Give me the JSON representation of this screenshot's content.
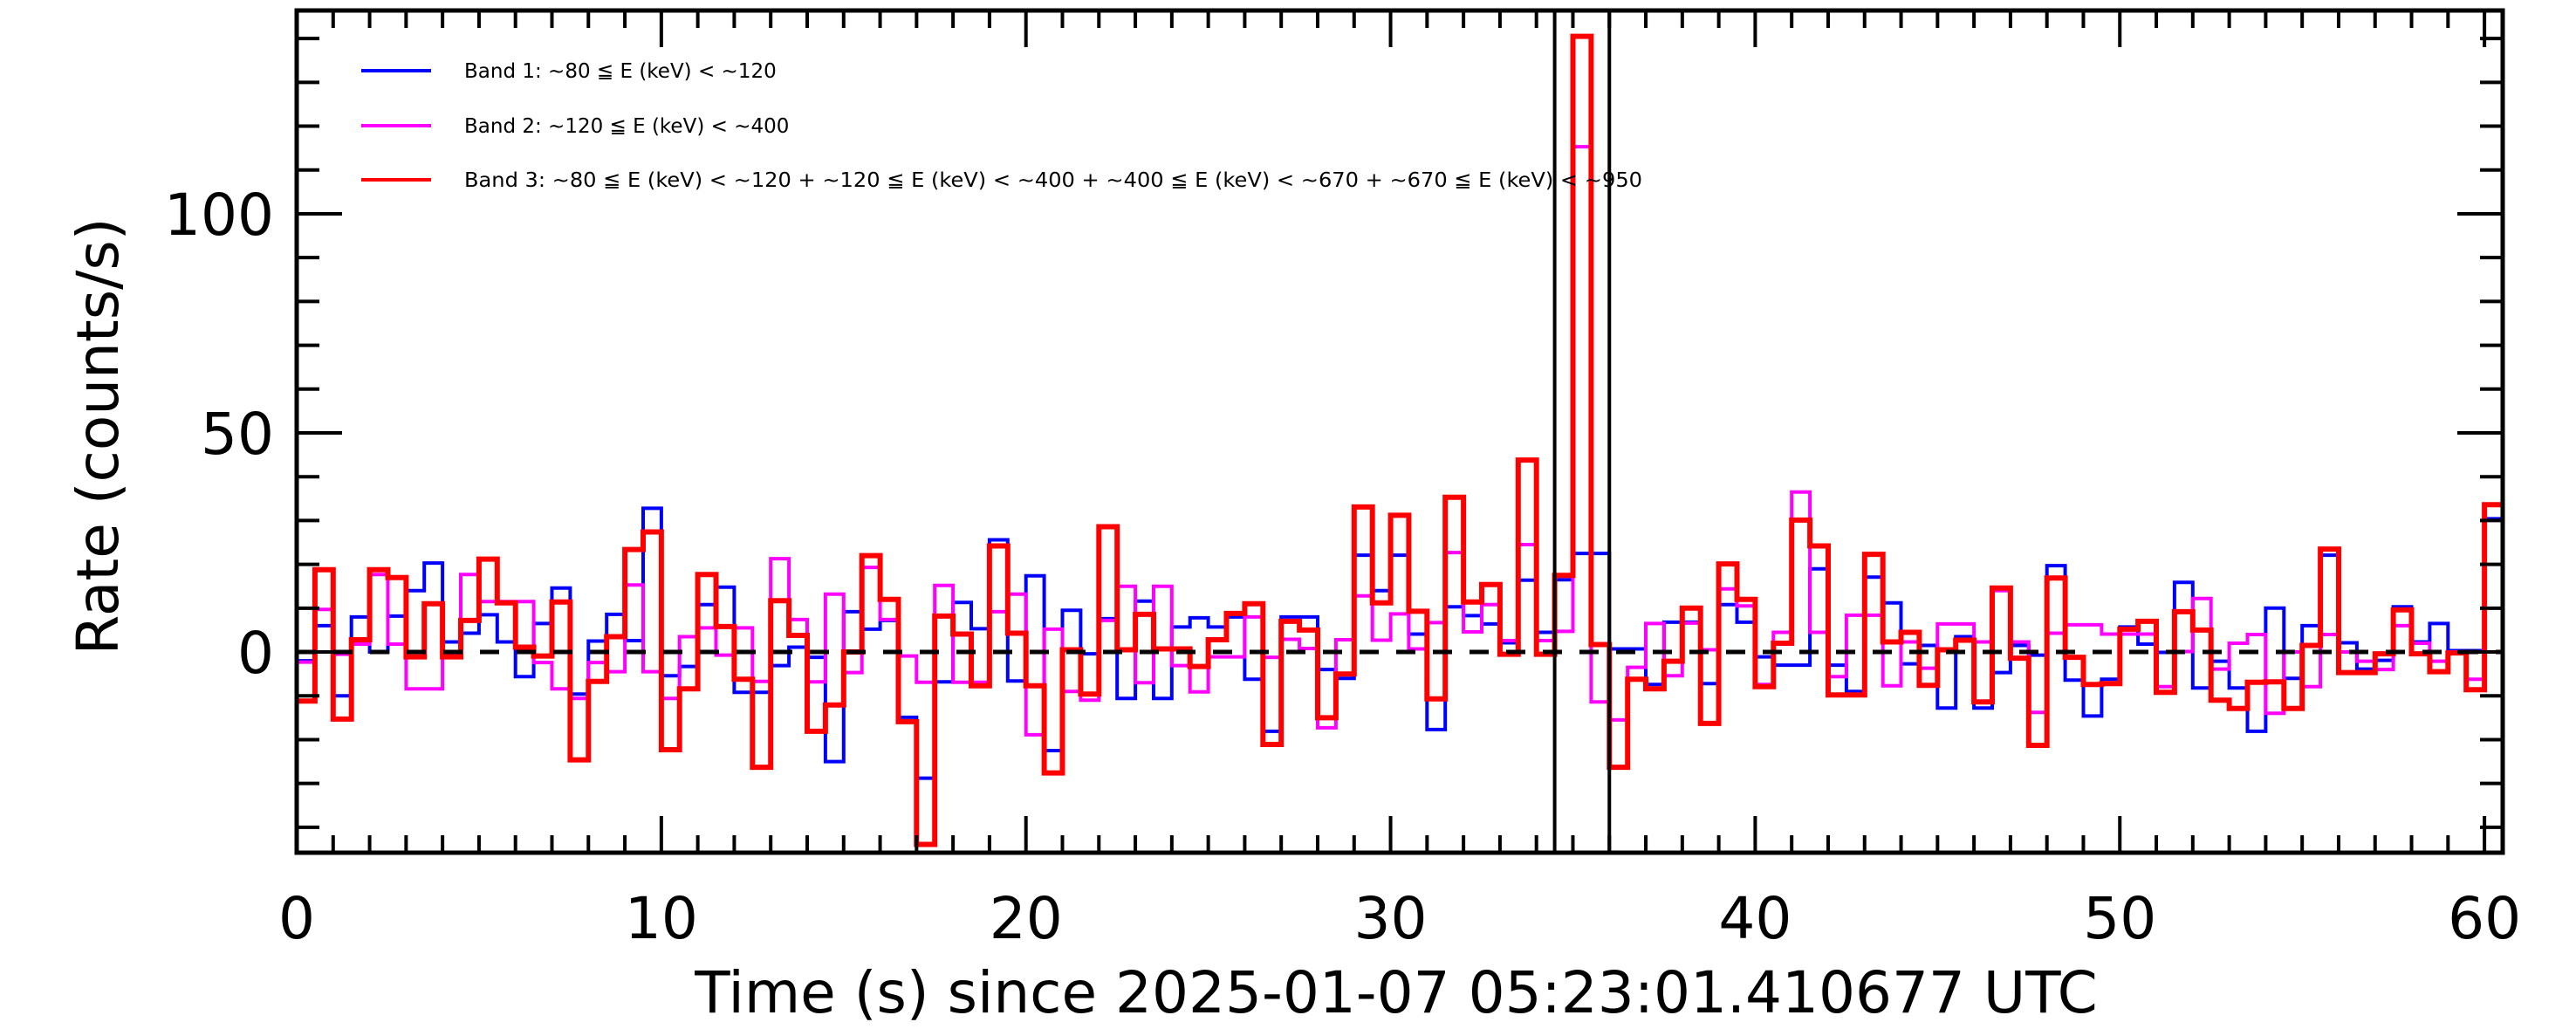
{
  "chart_data": {
    "type": "line",
    "step": true,
    "xlabel": "Time (s) since 2025-01-07 05:23:01.410677 UTC",
    "ylabel": "Rate (counts/s)",
    "xlim": [
      0,
      60.5
    ],
    "ylim": [
      -45.8,
      146.4
    ],
    "xticks": [
      0,
      10,
      20,
      30,
      40,
      50,
      60
    ],
    "xtick_labels": [
      "0",
      "10",
      "20",
      "30",
      "40",
      "50",
      "60"
    ],
    "yticks": [
      0,
      50,
      100
    ],
    "ytick_labels": [
      "0",
      "50",
      "100"
    ],
    "x_minor_step": 1,
    "y_minor_step": 10,
    "bin_width": 0.5,
    "bin_start": 0,
    "reference_line": {
      "y": 0,
      "style": "dashed",
      "color": "#000000"
    },
    "vertical_markers": [
      34.5,
      36.0
    ],
    "legend_placement": "top-left",
    "series": [
      {
        "name": "Band 1: ~80 ≦ E (keV) < ~120",
        "color": "#0000ff",
        "values": [
          -2,
          6,
          -10,
          8,
          0,
          8.2,
          14,
          20.3,
          2.3,
          4.3,
          8.5,
          2.3,
          -5.6,
          6.5,
          14.6,
          -9.6,
          2.5,
          8.6,
          2.6,
          32.8,
          -5.4,
          -3.3,
          10.8,
          14.8,
          -9.2,
          -9.2,
          -3.1,
          1.1,
          -1.2,
          -25,
          9.2,
          5.2,
          7.2,
          -14.9,
          -28.8,
          -6.8,
          11.3,
          5.3,
          25.6,
          -6.6,
          17.4,
          -22.5,
          9.5,
          -0.4,
          7.6,
          -10.6,
          11.6,
          -10.6,
          5.7,
          7.8,
          5.7,
          8,
          -6.2,
          -18.1,
          8,
          8,
          -4,
          -6,
          22.1,
          14,
          22.1,
          4.1,
          -17.7,
          10.3,
          8.3,
          6.4,
          2.1,
          16.4,
          4.5,
          16.5,
          22.5,
          22.5,
          0.7,
          0.7,
          -7.4,
          6.8,
          6.8,
          -7.2,
          10.8,
          6.8,
          -1.1,
          -3,
          -3,
          19,
          -3,
          -9,
          17.1,
          11.2,
          -2.7,
          1.5,
          -12.8,
          3.5,
          -12.8,
          -4.7,
          1.5,
          -0.7,
          19.7,
          -6.4,
          -14.6,
          -6.2,
          5.7,
          1.8,
          -0.1,
          15.9,
          -8.2,
          -2.1,
          -8.2,
          -18.1,
          10,
          -6,
          6,
          22.1,
          2.1,
          -3.9,
          -1.9,
          10.3,
          2.3,
          6.5,
          0.3,
          0.3,
          30.4
        ]
      },
      {
        "name": "Band 2: ~120 ≦ E (keV) < ~400",
        "color": "#ff00ff",
        "values": [
          -2.3,
          9.7,
          -0.5,
          1.8,
          17.7,
          1.8,
          -8.4,
          -8.4,
          -0.2,
          17.7,
          11.5,
          11.5,
          11.5,
          -2.4,
          -8.4,
          -10.6,
          -2.4,
          -4.5,
          15.3,
          -4.5,
          -10.6,
          3.5,
          5.5,
          -0.7,
          5.5,
          -6.7,
          21.3,
          7.4,
          -6.8,
          13.2,
          -4.7,
          19.3,
          7.4,
          -0.9,
          -6.9,
          15.2,
          -6.9,
          -6.9,
          9.2,
          13.2,
          -18.9,
          5.2,
          -9,
          -11,
          7.2,
          15,
          -7,
          15,
          -3.1,
          -9.1,
          -1.1,
          -1.1,
          8,
          -1.2,
          2.9,
          0.8,
          -17.3,
          2.8,
          12.8,
          2.7,
          8.7,
          0.7,
          6.7,
          22.7,
          4.6,
          10.8,
          2.6,
          24.5,
          2.6,
          4.7,
          115.3,
          -11.4,
          -15.5,
          -3.5,
          6.5,
          -5.4,
          6.6,
          0.5,
          14.4,
          10.5,
          -7.4,
          4.5,
          36.5,
          4.5,
          -5.6,
          8.4,
          8.4,
          -7.7,
          2.3,
          -3.7,
          6.4,
          6.4,
          2.3,
          14,
          2.3,
          -13.8,
          4.3,
          6.2,
          6.2,
          4.1,
          4.1,
          4.1,
          -7.9,
          0.1,
          12.2,
          -3.9,
          2,
          4,
          -14,
          0,
          -7.9,
          4,
          0,
          -2.1,
          -4,
          6,
          2,
          -2.1,
          0,
          -6.2,
          0
        ]
      },
      {
        "name": "Band 3: ~80 ≦ E (keV) < ~120 + ~120 ≦ E (keV) < ~400 + ~400 ≦ E (keV) < ~670 + ~670 ≦ E (keV) < ~950",
        "color": "#ff0000",
        "values": [
          -11.2,
          18.8,
          -15.3,
          2.8,
          18.8,
          17,
          -1.1,
          11,
          -1.1,
          7.2,
          21.2,
          11.2,
          1.1,
          -0.9,
          11.4,
          -24.6,
          -6.7,
          3.5,
          23.4,
          27.4,
          -22.3,
          -8.4,
          17.7,
          5.8,
          -6.2,
          -26.3,
          11.7,
          3.8,
          -18.1,
          -12.1,
          0,
          22,
          12,
          -15.9,
          -43.9,
          8.2,
          4.1,
          -7.7,
          24.2,
          4.3,
          -7.7,
          -27.6,
          0.5,
          -9.6,
          28.6,
          0.5,
          8.6,
          0.7,
          0.7,
          -3.3,
          2.8,
          8.8,
          11,
          -21.1,
          7,
          5,
          -15,
          -5,
          33.1,
          11.2,
          31.2,
          9.3,
          -10.7,
          35.3,
          11.4,
          15.4,
          -0.5,
          43.8,
          -0.5,
          17.5,
          140.5,
          1.7,
          -26.3,
          -6.2,
          -8.4,
          -2.1,
          10,
          -16.3,
          20.1,
          12,
          -7.9,
          2,
          30.1,
          24.2,
          -9.8,
          -9.8,
          22.3,
          2.3,
          4.5,
          -7.6,
          0.5,
          2.7,
          -11.4,
          14.6,
          -1.4,
          -21.3,
          16.9,
          -1.2,
          -7.4,
          -7.2,
          5.2,
          7,
          -9.2,
          9.2,
          5,
          -11,
          -12.9,
          -6.9,
          -6.8,
          -12.9,
          1.5,
          23.5,
          -4.7,
          -4.7,
          -0.4,
          9.6,
          -0.4,
          -4.5,
          -0.2,
          -8.6,
          33.6
        ]
      }
    ]
  }
}
